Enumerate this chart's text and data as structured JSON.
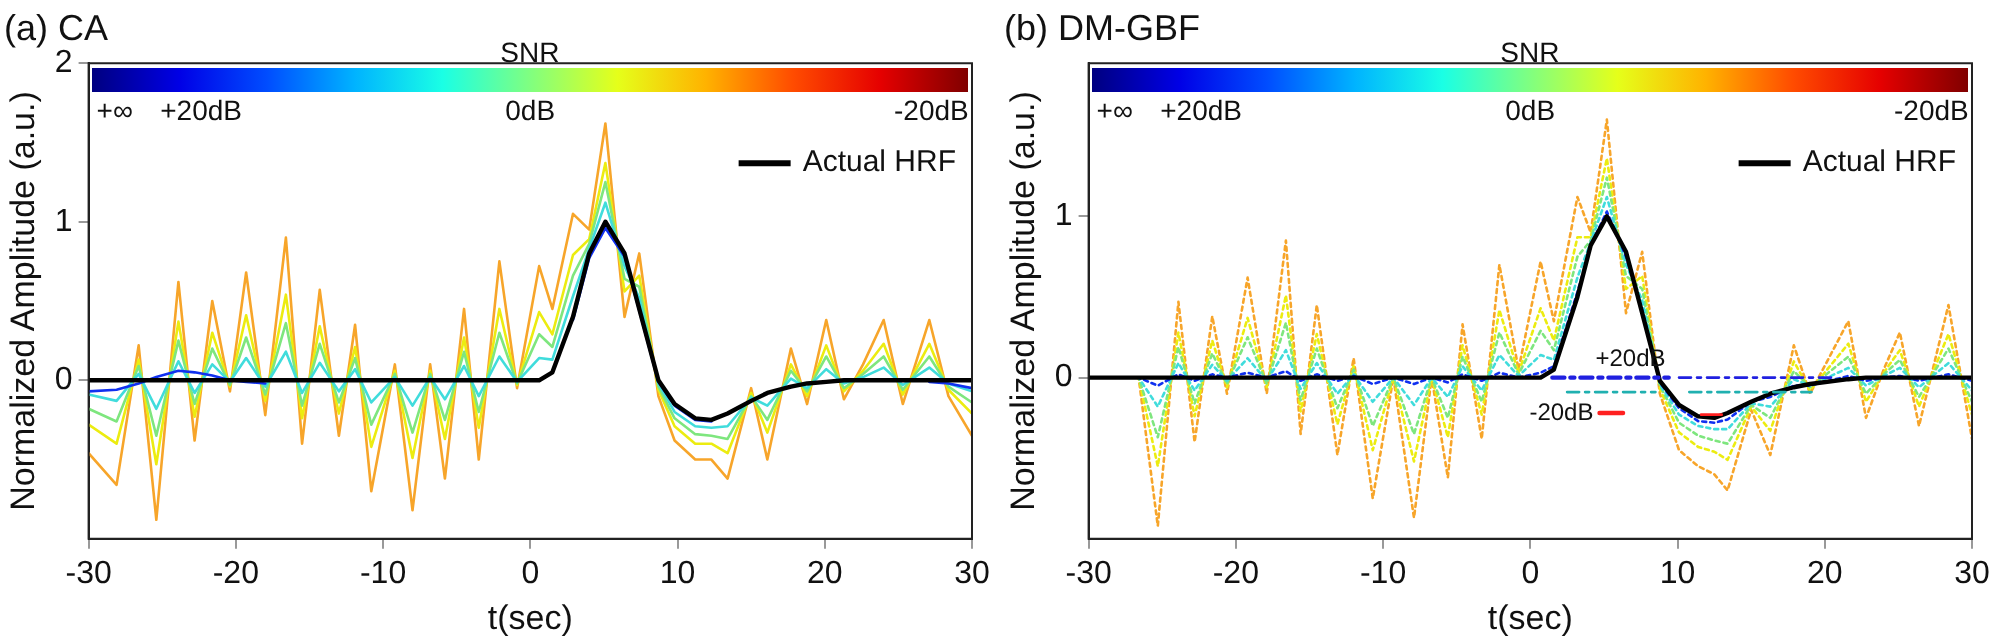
{
  "chart_data": [
    {
      "type": "line",
      "title": "(a) CA",
      "xlabel": "t(sec)",
      "ylabel": "Normalized Amplitude (a.u.)",
      "clabel": "SNR",
      "annotations": [
        "+∞",
        "+20dB",
        "0dB",
        "-20dB"
      ],
      "xlim": [
        -30,
        30
      ],
      "xticks": [
        -30,
        -20,
        -10,
        0,
        10,
        20,
        30
      ],
      "ylim": [
        -1,
        2
      ],
      "yticks": [
        0,
        1,
        2
      ],
      "legend": "top right",
      "marker": "none",
      "grid": false,
      "x": [
        -30,
        -28.1,
        -26.6,
        -25.4,
        -23.9,
        -22.8,
        -21.6,
        -20.4,
        -19.3,
        -18,
        -16.6,
        -15.5,
        -14.3,
        -13,
        -11.9,
        -10.8,
        -9.2,
        -8,
        -6.8,
        -5.8,
        -4.5,
        -3.5,
        -2.1,
        -0.9,
        0.6,
        1.5,
        2.9,
        4,
        5.1,
        6.4,
        7.4,
        8.7,
        9.8,
        11.2,
        12.3,
        13.4,
        15,
        16.1,
        17.7,
        18.8,
        20.1,
        21.3,
        22.6,
        24,
        25.3,
        27.1,
        28.4,
        30
      ],
      "series": [
        {
          "color": "#f7a52a",
          "values": [
            -0.46,
            -0.66,
            0.22,
            -0.88,
            0.62,
            -0.38,
            0.5,
            -0.07,
            0.68,
            -0.22,
            0.9,
            -0.4,
            0.57,
            -0.35,
            0.35,
            -0.7,
            0.1,
            -0.82,
            0.1,
            -0.62,
            0.45,
            -0.5,
            0.75,
            -0.05,
            0.72,
            0.45,
            1.05,
            0.95,
            1.62,
            0.4,
            0.8,
            -0.1,
            -0.38,
            -0.5,
            -0.5,
            -0.62,
            -0.05,
            -0.5,
            0.2,
            -0.15,
            0.38,
            -0.12,
            0.1,
            0.38,
            -0.15,
            0.38,
            -0.1,
            -0.35
          ]
        },
        {
          "color": "#ecec10",
          "values": [
            -0.28,
            -0.4,
            0.13,
            -0.53,
            0.37,
            -0.23,
            0.3,
            -0.04,
            0.41,
            -0.13,
            0.54,
            -0.24,
            0.34,
            -0.21,
            0.21,
            -0.42,
            0.06,
            -0.49,
            0.06,
            -0.37,
            0.27,
            -0.3,
            0.45,
            -0.03,
            0.43,
            0.29,
            0.79,
            0.89,
            1.37,
            0.56,
            0.66,
            -0.06,
            -0.29,
            -0.4,
            -0.4,
            -0.46,
            -0.08,
            -0.33,
            0.1,
            -0.1,
            0.22,
            -0.07,
            0.06,
            0.23,
            -0.09,
            0.23,
            -0.06,
            -0.21
          ]
        },
        {
          "color": "#7ee67e",
          "values": [
            -0.18,
            -0.26,
            0.09,
            -0.35,
            0.25,
            -0.15,
            0.2,
            -0.03,
            0.27,
            -0.09,
            0.36,
            -0.16,
            0.23,
            -0.14,
            0.14,
            -0.28,
            0.04,
            -0.33,
            0.04,
            -0.25,
            0.18,
            -0.2,
            0.3,
            -0.02,
            0.29,
            0.21,
            0.66,
            0.86,
            1.25,
            0.64,
            0.59,
            -0.04,
            -0.24,
            -0.34,
            -0.35,
            -0.37,
            -0.1,
            -0.25,
            0.06,
            -0.07,
            0.15,
            -0.05,
            0.04,
            0.15,
            -0.06,
            0.15,
            -0.04,
            -0.14
          ]
        },
        {
          "color": "#40dcdc",
          "values": [
            -0.09,
            -0.13,
            0.04,
            -0.18,
            0.12,
            -0.08,
            0.1,
            -0.01,
            0.14,
            -0.04,
            0.18,
            -0.08,
            0.11,
            -0.07,
            0.07,
            -0.14,
            0.02,
            -0.16,
            0.02,
            -0.12,
            0.09,
            -0.1,
            0.15,
            -0.01,
            0.14,
            0.13,
            0.53,
            0.83,
            1.12,
            0.72,
            0.52,
            -0.02,
            -0.2,
            -0.29,
            -0.3,
            -0.29,
            -0.11,
            -0.16,
            0.01,
            -0.05,
            0.07,
            -0.02,
            0.02,
            0.08,
            -0.03,
            0.08,
            -0.02,
            -0.07
          ]
        },
        {
          "color": "#1030f0",
          "values": [
            -0.07,
            -0.06,
            -0.02,
            0.02,
            0.06,
            0.05,
            0.03,
            0,
            -0.01,
            -0.02,
            null,
            null,
            null,
            null,
            null,
            null,
            null,
            null,
            null,
            null,
            null,
            null,
            null,
            null,
            null,
            null,
            0.38,
            0.77,
            0.96,
            0.78,
            0.44,
            -0.01,
            -0.16,
            -0.25,
            -0.26,
            null,
            null,
            null,
            null,
            null,
            null,
            null,
            null,
            null,
            null,
            -0.01,
            -0.02,
            -0.05
          ]
        },
        {
          "name": "Actual HRF",
          "color": "#000000",
          "values": [
            0,
            0,
            0,
            0,
            0,
            0,
            0,
            0,
            0,
            0,
            0,
            0,
            0,
            0,
            0,
            0,
            0,
            0,
            0,
            0,
            0,
            0,
            0,
            0,
            0,
            0.05,
            0.4,
            0.8,
            1,
            0.8,
            0.45,
            0,
            -0.15,
            -0.24,
            -0.25,
            -0.21,
            -0.13,
            -0.08,
            -0.04,
            -0.02,
            -0.01,
            0,
            0,
            0,
            0,
            0,
            0,
            0
          ]
        }
      ]
    },
    {
      "type": "line",
      "title": "(b) DM-GBF",
      "xlabel": "t(sec)",
      "ylabel": "Normalized Amplitude (a.u.)",
      "clabel": "SNR",
      "xlim": [
        -30,
        30
      ],
      "xticks": [
        -30,
        -20,
        -10,
        0,
        10,
        20,
        30
      ],
      "ylim": [
        -1,
        1.95
      ],
      "yticks": [
        0,
        1
      ],
      "legend": "top right",
      "marker": "none",
      "grid": false,
      "annotations": [
        "+∞",
        "+20dB",
        "0dB",
        "-20dB"
      ],
      "x": [
        -30,
        -26.6,
        -25.3,
        -23.9,
        -22.8,
        -21.6,
        -20.6,
        -19.2,
        -17.9,
        -16.6,
        -15.6,
        -14.5,
        -13.1,
        -12,
        -10.7,
        -9.3,
        -7.9,
        -6.7,
        -5.6,
        -4.6,
        -3.3,
        -2.1,
        -0.8,
        0.7,
        1.6,
        3.2,
        4.1,
        5.2,
        6.5,
        7.6,
        8.8,
        10.1,
        11.4,
        12.5,
        13.4,
        15,
        16.3,
        17.9,
        19,
        21.6,
        22.8,
        24,
        25.1,
        26.4,
        28.4,
        30
      ],
      "series": [
        {
          "color": "#f7a52a",
          "line_style": "dotted",
          "values": [
            0,
            0,
            -0.92,
            0.47,
            -0.4,
            0.38,
            -0.1,
            0.62,
            -0.1,
            0.85,
            -0.35,
            0.45,
            -0.48,
            0.12,
            -0.75,
            0,
            -0.87,
            0,
            -0.62,
            0.33,
            -0.38,
            0.7,
            0.05,
            0.72,
            0.35,
            1.12,
            0.9,
            1.6,
            0.4,
            0.78,
            -0.1,
            -0.45,
            -0.55,
            -0.6,
            -0.7,
            -0.2,
            -0.48,
            0.2,
            -0.1,
            0.35,
            -0.25,
            0.05,
            0.28,
            -0.3,
            0.45,
            -0.38
          ]
        },
        {
          "color": "#ecec10",
          "line_style": "dotted",
          "values": [
            0,
            0,
            -0.55,
            0.28,
            -0.24,
            0.23,
            -0.06,
            0.37,
            -0.06,
            0.51,
            -0.21,
            0.27,
            -0.29,
            0.07,
            -0.45,
            0,
            -0.52,
            0,
            -0.37,
            0.2,
            -0.23,
            0.42,
            0.03,
            0.43,
            0.23,
            0.87,
            0.87,
            1.36,
            0.55,
            0.63,
            -0.07,
            -0.34,
            -0.43,
            -0.46,
            -0.51,
            -0.18,
            -0.33,
            0.1,
            -0.08,
            0.21,
            -0.15,
            0.03,
            0.17,
            -0.18,
            0.27,
            -0.23
          ]
        },
        {
          "color": "#7ee67e",
          "line_style": "dotted",
          "values": [
            0,
            0,
            -0.37,
            0.19,
            -0.16,
            0.15,
            -0.04,
            0.25,
            -0.04,
            0.34,
            -0.14,
            0.18,
            -0.19,
            0.05,
            -0.3,
            0,
            -0.35,
            0,
            -0.25,
            0.13,
            -0.15,
            0.28,
            0.02,
            0.29,
            0.17,
            0.75,
            0.85,
            1.24,
            0.63,
            0.55,
            -0.05,
            -0.28,
            -0.36,
            -0.39,
            -0.41,
            -0.17,
            -0.25,
            0.04,
            -0.06,
            0.13,
            -0.1,
            0.02,
            0.11,
            -0.12,
            0.18,
            -0.15
          ]
        },
        {
          "color": "#40dcdc",
          "line_style": "dotted",
          "values": [
            0,
            0,
            -0.18,
            0.09,
            -0.08,
            0.08,
            -0.02,
            0.12,
            -0.02,
            0.17,
            -0.07,
            0.09,
            -0.1,
            0.02,
            -0.15,
            0,
            -0.17,
            0,
            -0.12,
            0.07,
            -0.08,
            0.14,
            0.01,
            0.14,
            0.11,
            0.62,
            0.84,
            1.12,
            0.7,
            0.48,
            -0.04,
            -0.23,
            -0.3,
            -0.32,
            -0.32,
            -0.16,
            -0.18,
            -0.01,
            -0.05,
            0.06,
            -0.05,
            0.01,
            0.06,
            -0.06,
            0.09,
            -0.08
          ]
        },
        {
          "color": "#1030f0",
          "line_style": "dotted",
          "values": [
            0,
            0,
            -0.05,
            0.02,
            -0.02,
            0.02,
            0,
            0.03,
            0,
            0.04,
            -0.02,
            0.02,
            -0.02,
            0.01,
            -0.04,
            0,
            -0.04,
            0,
            -0.03,
            0.02,
            -0.02,
            0.03,
            0,
            0.03,
            0.07,
            0.53,
            0.82,
            1.03,
            0.75,
            0.42,
            -0.03,
            -0.19,
            -0.27,
            -0.28,
            -0.26,
            -0.15,
            -0.12,
            -0.05,
            -0.05,
            0.01,
            -0.02,
            0,
            0.01,
            -0.02,
            0.02,
            -0.02
          ]
        },
        {
          "name": "Actual HRF",
          "color": "#000000",
          "values": [
            0,
            0,
            0,
            0,
            0,
            0,
            0,
            0,
            0,
            0,
            0,
            0,
            0,
            0,
            0,
            0,
            0,
            0,
            0,
            0,
            0,
            0,
            0,
            0,
            0.05,
            0.5,
            0.82,
            1,
            0.78,
            0.4,
            -0.02,
            -0.17,
            -0.24,
            -0.25,
            -0.22,
            -0.15,
            -0.1,
            -0.06,
            -0.04,
            -0.01,
            0,
            0,
            0,
            0,
            0,
            0
          ]
        },
        {
          "name": "+20dB",
          "color": "#2020e0",
          "line_style": "dashed",
          "x": [
            1.5,
            9.4
          ],
          "values": [
            0,
            0
          ]
        },
        {
          "color": "#2020e0",
          "line_style": "dashed",
          "x": [
            10.1,
            20.8
          ],
          "values": [
            0,
            0
          ]
        },
        {
          "color": "#20b0b0",
          "line_style": "dashed",
          "x": [
            2.5,
            8.5
          ],
          "values": [
            -0.09,
            -0.09
          ]
        },
        {
          "color": "#20b0b0",
          "line_style": "dashed",
          "x": [
            10.8,
            19.1
          ],
          "values": [
            -0.09,
            -0.09
          ]
        },
        {
          "name": "-20dB",
          "color": "#ff2020",
          "x": [
            4.7,
            6.3
          ],
          "values": [
            -0.22,
            -0.22
          ]
        },
        {
          "color": "#ff2020",
          "x": [
            11.6,
            13
          ],
          "values": [
            -0.23,
            -0.23
          ]
        }
      ]
    }
  ]
}
